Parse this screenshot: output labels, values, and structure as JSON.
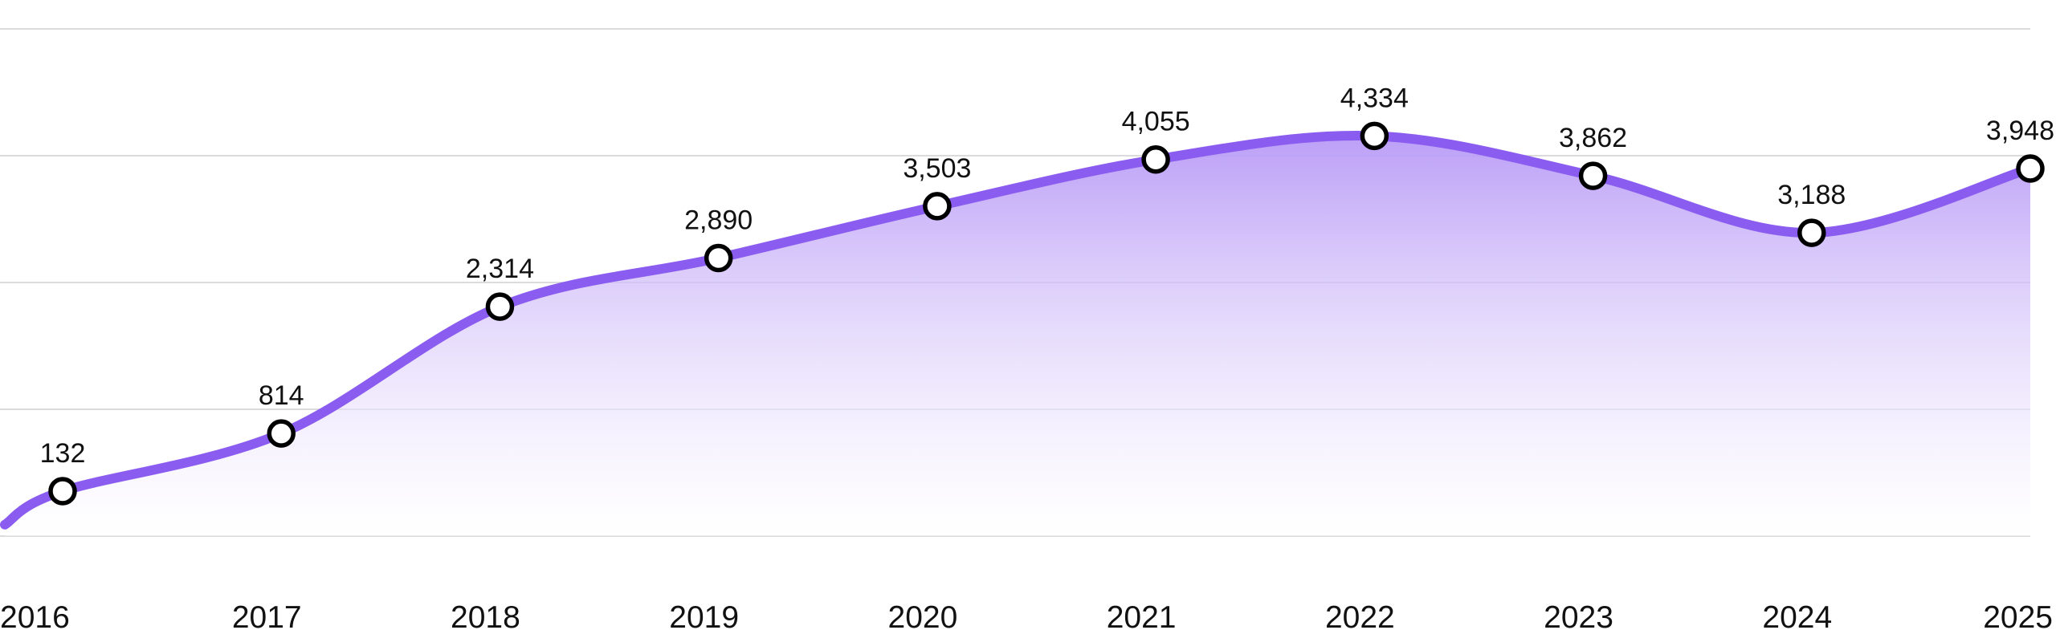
{
  "chart_data": {
    "type": "area",
    "categories": [
      "2016",
      "2017",
      "2018",
      "2019",
      "2020",
      "2021",
      "2022",
      "2023",
      "2024",
      "2025"
    ],
    "series": [
      {
        "values": [
          132,
          814,
          2314,
          2890,
          3503,
          4055,
          4334,
          3862,
          3188,
          3948
        ]
      }
    ],
    "data_labels": [
      "132",
      "814",
      "2,314",
      "2,890",
      "3,503",
      "4,055",
      "4,334",
      "3,862",
      "3,188",
      "3,948"
    ],
    "title": "",
    "xlabel": "",
    "ylabel": "",
    "ylim": [
      -400,
      5600
    ],
    "y_gridlines": [
      -400,
      1100,
      2600,
      4100,
      5600
    ],
    "y_tick_labels_shown": false,
    "grid": true,
    "legend": "none",
    "colors": {
      "line": "#8b5cf0",
      "area_top": "#b89af6",
      "grid": "#cfcfd4",
      "point_fill": "#ffffff",
      "point_stroke": "#000000"
    }
  }
}
